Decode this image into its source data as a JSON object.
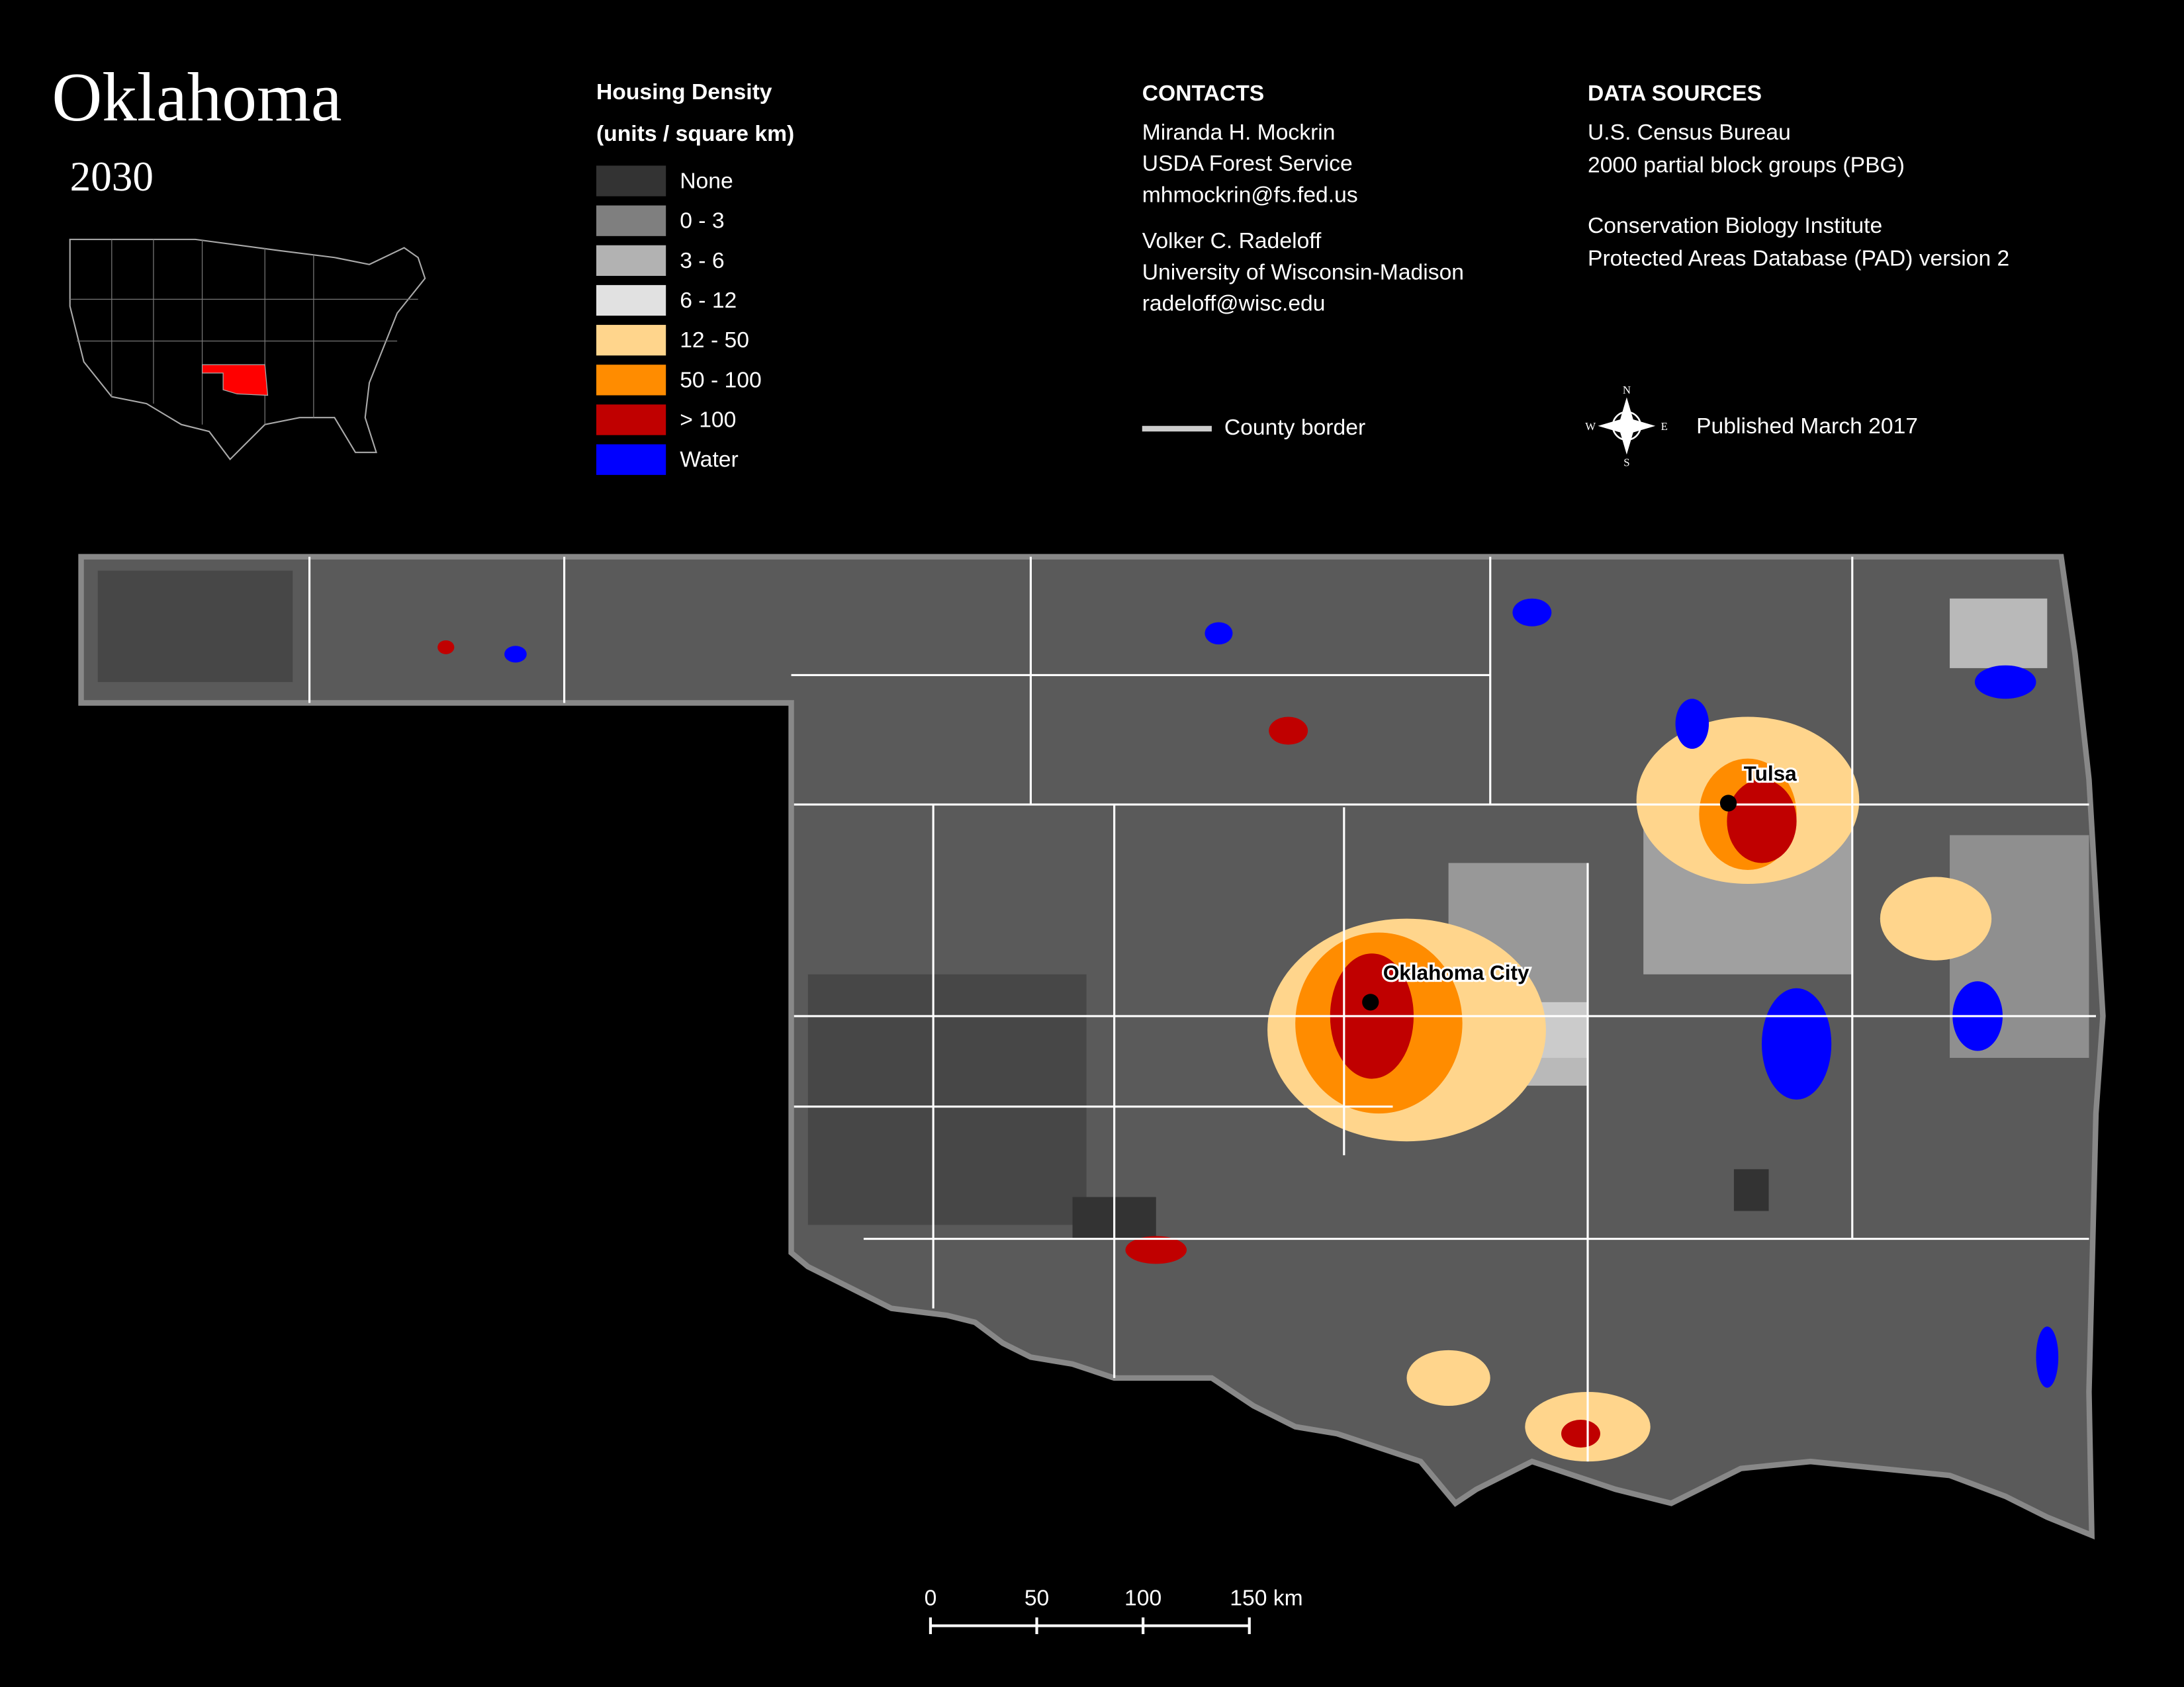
{
  "title": "Oklahoma",
  "year": "2030",
  "legend": {
    "title": "Housing Density",
    "subtitle": "(units / square km)",
    "items": [
      {
        "label": "None",
        "color": "#333333"
      },
      {
        "label": "0 - 3",
        "color": "#7f7f7f"
      },
      {
        "label": "3 - 6",
        "color": "#b2b2b2"
      },
      {
        "label": "6 - 12",
        "color": "#e1e1e1"
      },
      {
        "label": "12 - 50",
        "color": "#ffd58c"
      },
      {
        "label": "50 - 100",
        "color": "#ff8c00"
      },
      {
        "label": "> 100",
        "color": "#c00000"
      },
      {
        "label": "Water",
        "color": "#0000ff"
      }
    ]
  },
  "contacts": {
    "heading": "CONTACTS",
    "people": [
      [
        "Miranda H. Mockrin",
        "USDA Forest Service",
        "mhmockrin@fs.fed.us"
      ],
      [
        "Volker C. Radeloff",
        "University of Wisconsin-Madison",
        "radeloff@wisc.edu"
      ]
    ]
  },
  "data_sources": {
    "heading": "DATA SOURCES",
    "groups": [
      [
        "U.S. Census Bureau",
        "2000 partial block groups (PBG)"
      ],
      [
        "Conservation Biology Institute",
        "Protected Areas Database (PAD) version 2"
      ]
    ]
  },
  "county_border": "County border",
  "published": "Published March 2017",
  "compass": {
    "n": "N",
    "e": "E",
    "s": "S",
    "w": "W"
  },
  "cities": [
    "Tulsa",
    "Oklahoma City"
  ],
  "scale_bar": [
    "0",
    "50",
    "100",
    "150 km"
  ]
}
